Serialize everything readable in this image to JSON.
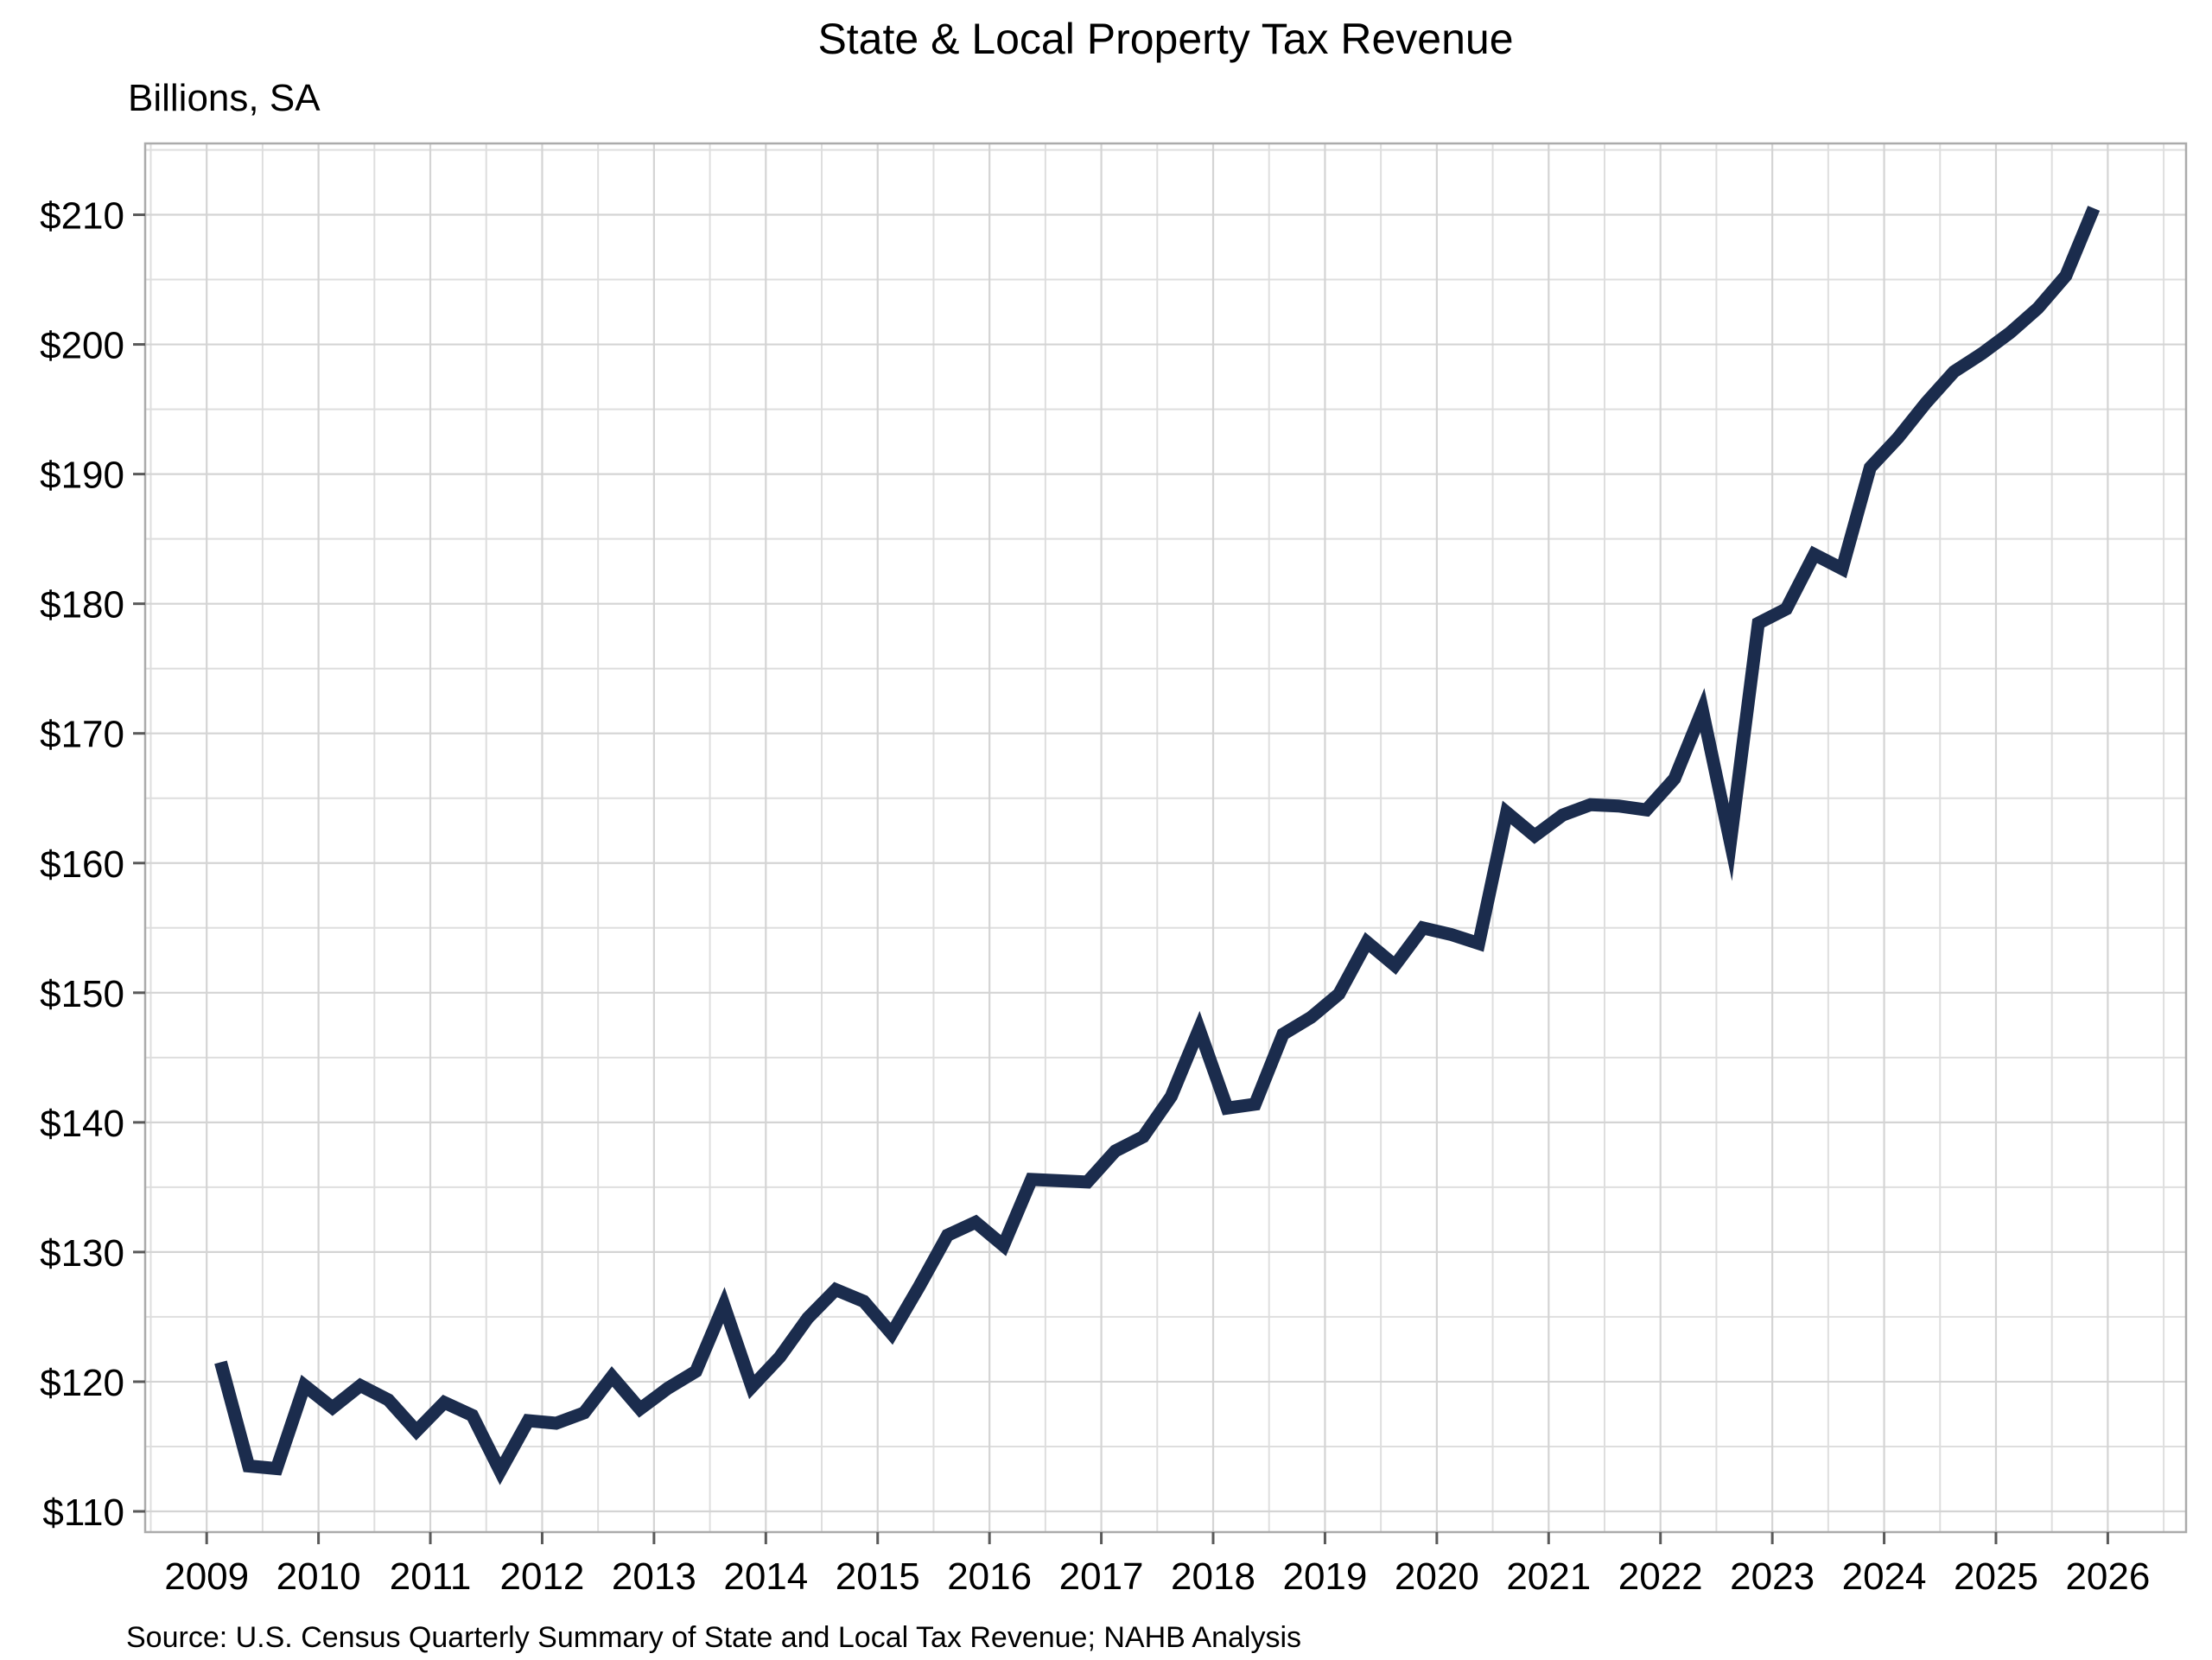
{
  "page": {
    "background_color": "#FFFFFF"
  },
  "chart_data": {
    "type": "line",
    "title": "State & Local Property Tax Revenue",
    "ylabel_units": "Billions, SA",
    "source_note": "Source: U.S. Census Quarterly Summary of State and Local Tax Revenue; NAHB Analysis",
    "legend_position": "none",
    "grid": "on",
    "x_axis": {
      "min": 2008.45,
      "max": 2026.7,
      "major_tick_values": [
        2009,
        2010,
        2011,
        2012,
        2013,
        2014,
        2015,
        2016,
        2017,
        2018,
        2019,
        2020,
        2021,
        2022,
        2023,
        2024,
        2025,
        2026
      ],
      "major_tick_labels": [
        "2009",
        "2010",
        "2011",
        "2012",
        "2013",
        "2014",
        "2015",
        "2016",
        "2017",
        "2018",
        "2019",
        "2020",
        "2021",
        "2022",
        "2023",
        "2024",
        "2025",
        "2026"
      ],
      "minor_gridline_values": [
        2008.5,
        2009.5,
        2010.5,
        2011.5,
        2012.5,
        2013.5,
        2014.5,
        2015.5,
        2016.5,
        2017.5,
        2018.5,
        2019.5,
        2020.5,
        2021.5,
        2022.5,
        2023.5,
        2024.5,
        2025.5,
        2026.5
      ]
    },
    "y_axis": {
      "min": 108.4,
      "max": 215.5,
      "major_tick_values": [
        110,
        120,
        130,
        140,
        150,
        160,
        170,
        180,
        190,
        200,
        210
      ],
      "major_tick_labels": [
        "$110",
        "$120",
        "$130",
        "$140",
        "$150",
        "$160",
        "$170",
        "$180",
        "$190",
        "$200",
        "$210"
      ],
      "minor_gridline_values": [
        115,
        125,
        135,
        145,
        155,
        165,
        175,
        185,
        195,
        205,
        215
      ]
    },
    "series": [
      {
        "name": "State & local property tax revenue, billions SA, quarterly",
        "color": "#1B2C4D",
        "stroke_width": 15,
        "points": [
          [
            2009.125,
            121.5
          ],
          [
            2009.375,
            113.5
          ],
          [
            2009.625,
            113.3
          ],
          [
            2009.875,
            119.7
          ],
          [
            2010.125,
            118.0
          ],
          [
            2010.375,
            119.7
          ],
          [
            2010.625,
            118.6
          ],
          [
            2010.875,
            116.2
          ],
          [
            2011.125,
            118.4
          ],
          [
            2011.375,
            117.4
          ],
          [
            2011.625,
            113.1
          ],
          [
            2011.875,
            117.0
          ],
          [
            2012.125,
            116.8
          ],
          [
            2012.375,
            117.6
          ],
          [
            2012.625,
            120.4
          ],
          [
            2012.875,
            117.9
          ],
          [
            2013.125,
            119.5
          ],
          [
            2013.375,
            120.8
          ],
          [
            2013.625,
            125.9
          ],
          [
            2013.875,
            119.6
          ],
          [
            2014.125,
            121.9
          ],
          [
            2014.375,
            124.9
          ],
          [
            2014.625,
            127.1
          ],
          [
            2014.875,
            126.2
          ],
          [
            2015.125,
            123.7
          ],
          [
            2015.375,
            127.4
          ],
          [
            2015.625,
            131.3
          ],
          [
            2015.875,
            132.3
          ],
          [
            2016.125,
            130.5
          ],
          [
            2016.375,
            135.6
          ],
          [
            2016.625,
            135.5
          ],
          [
            2016.875,
            135.4
          ],
          [
            2017.125,
            137.8
          ],
          [
            2017.375,
            138.9
          ],
          [
            2017.625,
            142.0
          ],
          [
            2017.875,
            147.2
          ],
          [
            2018.125,
            141.1
          ],
          [
            2018.375,
            141.4
          ],
          [
            2018.625,
            146.8
          ],
          [
            2018.875,
            148.1
          ],
          [
            2019.125,
            149.9
          ],
          [
            2019.375,
            153.9
          ],
          [
            2019.625,
            152.1
          ],
          [
            2019.875,
            155.0
          ],
          [
            2020.125,
            154.5
          ],
          [
            2020.375,
            153.8
          ],
          [
            2020.625,
            163.9
          ],
          [
            2020.875,
            162.1
          ],
          [
            2021.125,
            163.7
          ],
          [
            2021.375,
            164.5
          ],
          [
            2021.625,
            164.4
          ],
          [
            2021.875,
            164.1
          ],
          [
            2022.125,
            166.5
          ],
          [
            2022.375,
            171.8
          ],
          [
            2022.625,
            161.6
          ],
          [
            2022.875,
            178.5
          ],
          [
            2023.125,
            179.6
          ],
          [
            2023.375,
            183.8
          ],
          [
            2023.625,
            182.7
          ],
          [
            2023.875,
            190.5
          ],
          [
            2024.125,
            192.8
          ],
          [
            2024.375,
            195.5
          ],
          [
            2024.625,
            197.9
          ],
          [
            2024.875,
            199.3
          ],
          [
            2025.125,
            200.9
          ],
          [
            2025.375,
            202.8
          ],
          [
            2025.625,
            205.3
          ],
          [
            2025.875,
            210.5
          ]
        ]
      }
    ],
    "styles": {
      "major_gridline_color": "#D4D4D4",
      "minor_gridline_color": "#DEDEDE",
      "panel_border_color": "#ABABAB",
      "tick_mark_color": "#595959",
      "axis_label_color": "#000000"
    }
  }
}
